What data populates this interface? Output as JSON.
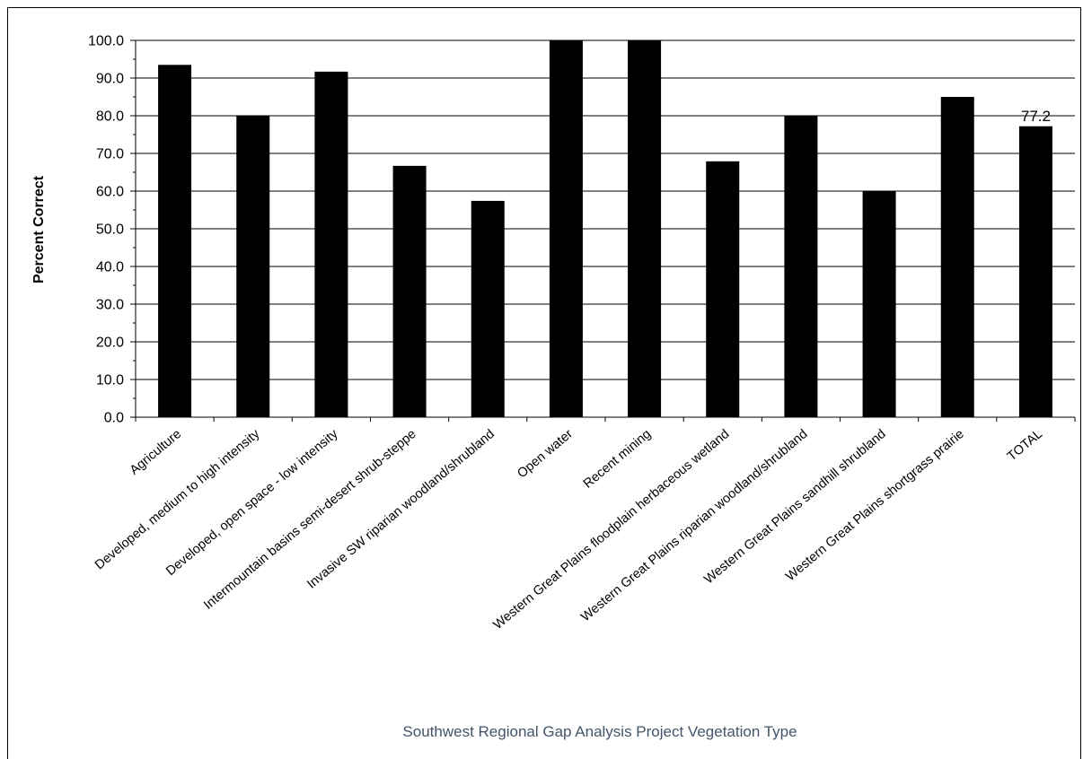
{
  "chart_data": {
    "type": "bar",
    "categories": [
      "Agriculture",
      "Developed, medium to high intensity",
      "Developed, open space - low intensity",
      "Intermountain basins semi-desert shrub-steppe",
      "Invasive SW riparian woodland/shrubland",
      "Open water",
      "Recent mining",
      "Western Great Plains floodplain herbaceous wetland",
      "Western Great Plains riparian woodland/shrubland",
      "Western Great Plains sandhill shrubland",
      "Western Great Plains shortgrass prairie",
      "TOTAL"
    ],
    "values": [
      93.5,
      80.0,
      91.7,
      66.7,
      57.4,
      100.0,
      100.0,
      67.9,
      80.0,
      60.0,
      85.0,
      77.2
    ],
    "data_labels": [
      {
        "category": "TOTAL",
        "text": "77.2"
      }
    ],
    "xlabel": "Southwest Regional Gap Analysis Project Vegetation Type",
    "ylabel": "Percent Correct",
    "ylim": [
      0,
      100
    ],
    "yticks": [
      "0.0",
      "10.0",
      "20.0",
      "30.0",
      "40.0",
      "50.0",
      "60.0",
      "70.0",
      "80.0",
      "90.0",
      "100.0"
    ],
    "grid": true,
    "bar_color": "#000000",
    "xlabel_color": "#44546a"
  }
}
